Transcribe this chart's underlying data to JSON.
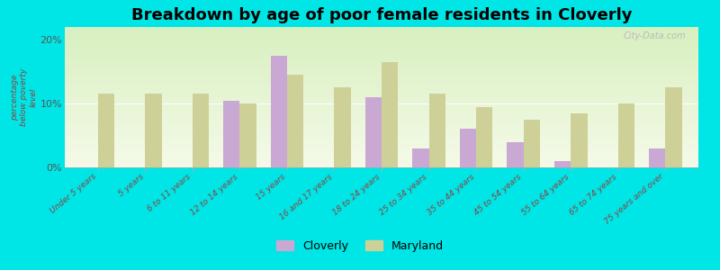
{
  "title": "Breakdown by age of poor female residents in Cloverly",
  "ylabel": "percentage\nbelow poverty\nlevel",
  "categories": [
    "Under 5 years",
    "5 years",
    "6 to 11 years",
    "12 to 14 years",
    "15 years",
    "16 and 17 years",
    "18 to 24 years",
    "25 to 34 years",
    "35 to 44 years",
    "45 to 54 years",
    "55 to 64 years",
    "65 to 74 years",
    "75 years and over"
  ],
  "cloverly": [
    null,
    null,
    null,
    10.5,
    17.5,
    null,
    11.0,
    3.0,
    6.0,
    4.0,
    1.0,
    null,
    3.0
  ],
  "maryland": [
    11.5,
    11.5,
    11.5,
    10.0,
    14.5,
    12.5,
    16.5,
    11.5,
    9.5,
    7.5,
    8.5,
    10.0,
    12.5
  ],
  "cloverly_color": "#c9a8d4",
  "maryland_color": "#cdd197",
  "background_top": "#f5fae8",
  "background_bottom": "#d8f0c0",
  "plot_background": "#00e5e5",
  "ylim": [
    0,
    22
  ],
  "yticks": [
    0,
    10,
    20
  ],
  "ytick_labels": [
    "0%",
    "10%",
    "20%"
  ],
  "bar_width": 0.35,
  "title_fontsize": 13,
  "label_fontsize": 6.5,
  "tick_fontsize": 8
}
